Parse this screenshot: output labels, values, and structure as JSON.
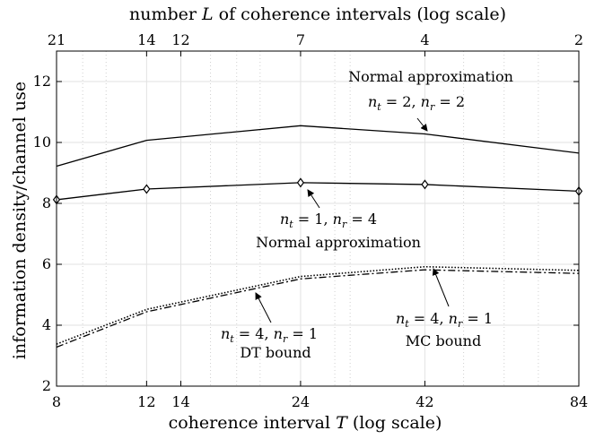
{
  "chart_data": {
    "type": "line",
    "title": "",
    "xlabel": "coherence interval T (log scale)",
    "ylabel": "information density/channel use",
    "top_xlabel": "number L of coherence intervals (log scale)",
    "xscale": "log",
    "xlim": [
      8,
      84
    ],
    "ylim": [
      2,
      13
    ],
    "xticks": [
      8,
      12,
      14,
      24,
      42,
      84
    ],
    "yticks": [
      2,
      4,
      6,
      8,
      10,
      12
    ],
    "top_ticks": [
      {
        "T": 8,
        "label": "21"
      },
      {
        "T": 12,
        "label": "14"
      },
      {
        "T": 14,
        "label": "12"
      },
      {
        "T": 24,
        "label": "7"
      },
      {
        "T": 42,
        "label": "4"
      },
      {
        "T": 84,
        "label": "2"
      }
    ],
    "minor_xgrid": [
      9,
      10,
      16,
      18,
      20,
      28,
      30,
      50,
      60,
      70
    ],
    "grid": true,
    "series": [
      {
        "name": "Normal approximation nt=2, nr=2",
        "style": "solid",
        "marker": "none",
        "x": [
          8,
          12,
          24,
          42,
          84
        ],
        "y": [
          9.22,
          10.07,
          10.55,
          10.28,
          9.65
        ]
      },
      {
        "name": "Normal approximation nt=1, nr=4",
        "style": "solid",
        "marker": "diamond",
        "x": [
          8,
          12,
          24,
          42,
          84
        ],
        "y": [
          8.12,
          8.47,
          8.68,
          8.62,
          8.4
        ]
      },
      {
        "name": "DT bound nt=4, nr=1",
        "style": "dashdot",
        "marker": "none",
        "x": [
          8,
          12,
          24,
          42,
          84
        ],
        "y": [
          3.28,
          4.44,
          5.52,
          5.82,
          5.7
        ]
      },
      {
        "name": "MC bound nt=4, nr=1",
        "style": "dotted",
        "marker": "none",
        "x": [
          8,
          12,
          24,
          42,
          84
        ],
        "y": [
          3.38,
          4.52,
          5.6,
          5.92,
          5.8
        ]
      }
    ],
    "annotations": [
      {
        "id": "a1",
        "line1": "Normal approximation",
        "line2": "n_t = 2, n_r = 2"
      },
      {
        "id": "a2",
        "line1": "n_t = 1, n_r = 4",
        "line2": "Normal approximation"
      },
      {
        "id": "a3",
        "line1": "n_t = 4, n_r = 1",
        "line2": "DT bound"
      },
      {
        "id": "a4",
        "line1": "n_t = 4, n_r = 1",
        "line2": "MC bound"
      }
    ]
  }
}
